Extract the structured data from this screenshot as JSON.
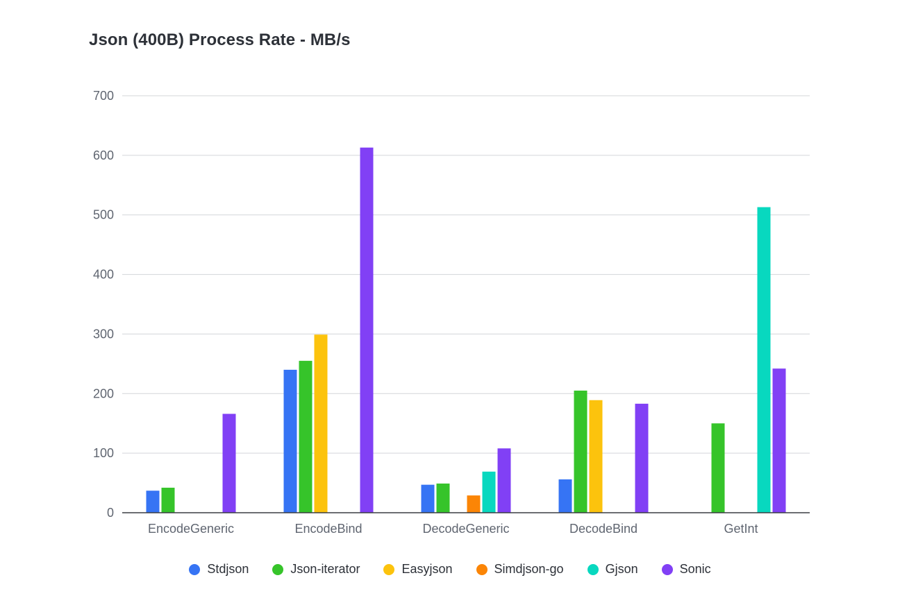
{
  "chart_data": {
    "type": "bar",
    "title": "Json (400B) Process Rate - MB/s",
    "xlabel": "",
    "ylabel": "",
    "ylim": [
      0,
      700
    ],
    "yticks": [
      0,
      100,
      200,
      300,
      400,
      500,
      600,
      700
    ],
    "grid": true,
    "legend_position": "bottom",
    "categories": [
      "EncodeGeneric",
      "EncodeBind",
      "DecodeGeneric",
      "DecodeBind",
      "GetInt"
    ],
    "series": [
      {
        "name": "Stdjson",
        "color": "#3674f4",
        "values": [
          37,
          240,
          47,
          56,
          null
        ]
      },
      {
        "name": "Json-iterator",
        "color": "#36c42a",
        "values": [
          42,
          255,
          49,
          205,
          150
        ]
      },
      {
        "name": "Easyjson",
        "color": "#fcc30d",
        "values": [
          null,
          299,
          null,
          189,
          null
        ]
      },
      {
        "name": "Simdjson-go",
        "color": "#fb8506",
        "values": [
          null,
          null,
          29,
          null,
          null
        ]
      },
      {
        "name": "Gjson",
        "color": "#08d8bf",
        "values": [
          null,
          null,
          69,
          null,
          513
        ]
      },
      {
        "name": "Sonic",
        "color": "#8140f5",
        "values": [
          166,
          613,
          108,
          183,
          242
        ]
      }
    ]
  }
}
